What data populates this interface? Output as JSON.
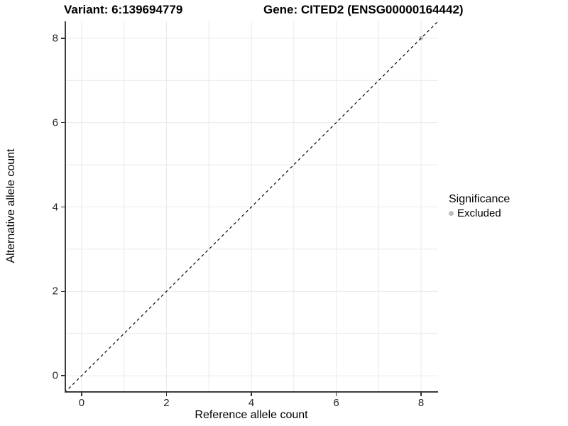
{
  "title": {
    "variant": "Variant: 6:139694779",
    "gene": "Gene: CITED2 (ENSG00000164442)"
  },
  "axes": {
    "x_label": "Reference allele count",
    "y_label": "Alternative allele count"
  },
  "legend": {
    "title": "Significance",
    "entries": [
      {
        "label": "Excluded",
        "color": "#bdbdbd"
      }
    ]
  },
  "chart_data": {
    "type": "scatter",
    "title": "Variant: 6:139694779    Gene: CITED2 (ENSG00000164442)",
    "xlabel": "Reference allele count",
    "ylabel": "Alternative allele count",
    "xlim": [
      -0.4,
      8.4
    ],
    "ylim": [
      -0.4,
      8.4
    ],
    "x_ticks": [
      0,
      2,
      4,
      6,
      8
    ],
    "y_ticks": [
      0,
      2,
      4,
      6,
      8
    ],
    "gridlines": {
      "x": [
        0,
        1,
        2,
        3,
        4,
        5,
        6,
        7,
        8
      ],
      "y": [
        0,
        1,
        2,
        3,
        4,
        5,
        6,
        7,
        8
      ],
      "color": "#e9e9e9"
    },
    "grid_on": true,
    "legend_position": "right",
    "series": [
      {
        "name": "Excluded",
        "color": "#bdbdbd",
        "points": [
          {
            "x": 8,
            "y": 8
          }
        ]
      }
    ],
    "reference_line": {
      "kind": "abline",
      "slope": 1,
      "intercept": 0,
      "style": "dashed",
      "color": "#000000"
    },
    "panel_colors": {
      "background": "#ffffff",
      "axis_line": "#3c3c3c",
      "tick": "#333333"
    }
  }
}
